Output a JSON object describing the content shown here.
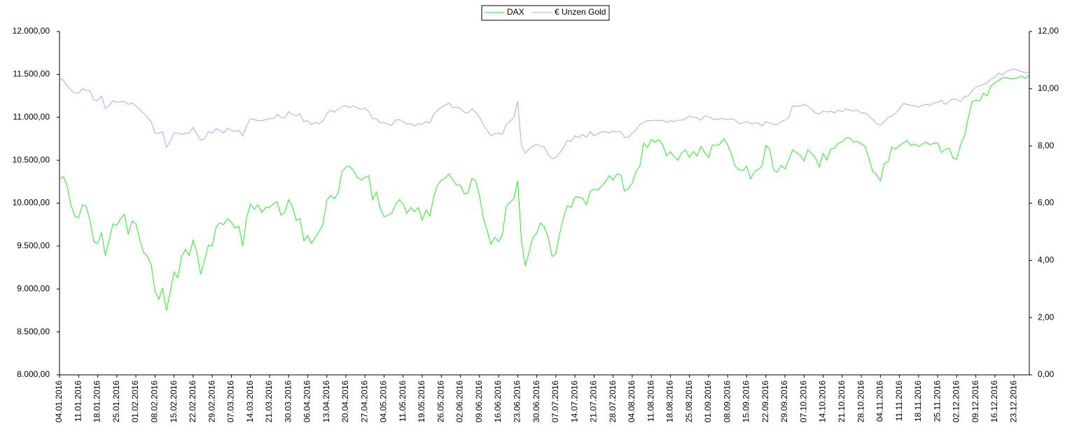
{
  "chart_data": {
    "type": "line",
    "categories": [
      "04.01.2016",
      null,
      null,
      null,
      null,
      "11.01.2016",
      null,
      null,
      null,
      null,
      "18.01.2016",
      null,
      null,
      null,
      null,
      "25.01.2016",
      null,
      null,
      null,
      null,
      "01.02.2016",
      null,
      null,
      null,
      null,
      "08.02.2016",
      null,
      null,
      null,
      null,
      "15.02.2016",
      null,
      null,
      null,
      null,
      "22.02.2016",
      null,
      null,
      null,
      null,
      "29.02.2016",
      null,
      null,
      null,
      null,
      "07.03.2016",
      null,
      null,
      null,
      null,
      "14.03.2016",
      null,
      null,
      null,
      null,
      "21.03.2016",
      null,
      null,
      null,
      null,
      "30.03.2016",
      null,
      null,
      null,
      null,
      "06.04.2016",
      null,
      null,
      null,
      null,
      "13.04.2016",
      null,
      null,
      null,
      null,
      "20.04.2016",
      null,
      null,
      null,
      null,
      "27.04.2016",
      null,
      null,
      null,
      null,
      "04.05.2016",
      null,
      null,
      null,
      null,
      "11.05.2016",
      null,
      null,
      null,
      null,
      "19.05.2016",
      null,
      null,
      null,
      null,
      "26.05.2016",
      null,
      null,
      null,
      null,
      "02.06.2016",
      null,
      null,
      null,
      null,
      "09.06.2016",
      null,
      null,
      null,
      null,
      "16.06.2016",
      null,
      null,
      null,
      null,
      "23.06.2016",
      null,
      null,
      null,
      null,
      "30.06.2016",
      null,
      null,
      null,
      null,
      "07.07.2016",
      null,
      null,
      null,
      null,
      "14.07.2016",
      null,
      null,
      null,
      null,
      "21.07.2016",
      null,
      null,
      null,
      null,
      "28.07.2016",
      null,
      null,
      null,
      null,
      "04.08.2016",
      null,
      null,
      null,
      null,
      "11.08.2016",
      null,
      null,
      null,
      null,
      "18.08.2016",
      null,
      null,
      null,
      null,
      "25.08.2016",
      null,
      null,
      null,
      null,
      "01.09.2016",
      null,
      null,
      null,
      null,
      "08.09.2016",
      null,
      null,
      null,
      null,
      "15.09.2016",
      null,
      null,
      null,
      null,
      "22.09.2016",
      null,
      null,
      null,
      null,
      "29.09.2016",
      null,
      null,
      null,
      null,
      "07.10.2016",
      null,
      null,
      null,
      null,
      "14.10.2016",
      null,
      null,
      null,
      null,
      "21.10.2016",
      null,
      null,
      null,
      null,
      "28.10.2016",
      null,
      null,
      null,
      null,
      "04.11.2016",
      null,
      null,
      null,
      null,
      "11.11.2016",
      null,
      null,
      null,
      null,
      "18.11.2016",
      null,
      null,
      null,
      null,
      "25.11.2016",
      null,
      null,
      null,
      null,
      "02.12.2016",
      null,
      null,
      null,
      null,
      "09.12.2016",
      null,
      null,
      null,
      null,
      "16.12.2016",
      null,
      null,
      null,
      null,
      "23.12.2016",
      null,
      null,
      null,
      null
    ],
    "series": [
      {
        "name": "DAX",
        "color": "#22ee22",
        "values": [
          10280,
          10310,
          10200,
          9980,
          9850,
          9830,
          9980,
          9960,
          9800,
          9550,
          9530,
          9660,
          9390,
          9570,
          9760,
          9740,
          9820,
          9870,
          9640,
          9790,
          9760,
          9580,
          9430,
          9380,
          9290,
          8980,
          8880,
          9010,
          8750,
          8970,
          9200,
          9130,
          9380,
          9460,
          9390,
          9570,
          9420,
          9170,
          9340,
          9510,
          9500,
          9720,
          9770,
          9750,
          9820,
          9780,
          9710,
          9730,
          9500,
          9830,
          9990,
          9930,
          9980,
          9890,
          9950,
          9950,
          9990,
          10020,
          9860,
          9890,
          10040,
          9960,
          9800,
          9820,
          9560,
          9620,
          9530,
          9600,
          9670,
          9750,
          10030,
          10090,
          10050,
          10120,
          10370,
          10420,
          10430,
          10380,
          10300,
          10270,
          10300,
          10320,
          10040,
          10130,
          9940,
          9840,
          9860,
          9880,
          9980,
          10040,
          9990,
          9880,
          9950,
          9900,
          9950,
          9800,
          9920,
          9850,
          10070,
          10210,
          10270,
          10290,
          10340,
          10270,
          10210,
          10210,
          10110,
          10120,
          10290,
          10260,
          10090,
          9830,
          9680,
          9520,
          9600,
          9550,
          9630,
          9960,
          10010,
          10050,
          10260,
          9560,
          9270,
          9430,
          9600,
          9650,
          9770,
          9720,
          9600,
          9380,
          9410,
          9640,
          9830,
          9970,
          9950,
          10070,
          10070,
          10060,
          9980,
          10140,
          10160,
          10150,
          10200,
          10250,
          10320,
          10270,
          10340,
          10330,
          10140,
          10170,
          10230,
          10370,
          10430,
          10700,
          10650,
          10740,
          10710,
          10740,
          10680,
          10550,
          10600,
          10540,
          10500,
          10590,
          10620,
          10530,
          10600,
          10550,
          10660,
          10590,
          10530,
          10680,
          10670,
          10690,
          10750,
          10680,
          10570,
          10430,
          10390,
          10380,
          10430,
          10280,
          10370,
          10390,
          10430,
          10670,
          10630,
          10390,
          10360,
          10440,
          10400,
          10500,
          10620,
          10590,
          10560,
          10490,
          10620,
          10580,
          10530,
          10420,
          10580,
          10500,
          10630,
          10640,
          10700,
          10710,
          10760,
          10760,
          10710,
          10720,
          10690,
          10660,
          10520,
          10370,
          10330,
          10260,
          10460,
          10480,
          10650,
          10630,
          10670,
          10700,
          10730,
          10670,
          10690,
          10660,
          10690,
          10710,
          10680,
          10700,
          10700,
          10590,
          10630,
          10640,
          10530,
          10510,
          10680,
          10780,
          10990,
          11180,
          11200,
          11190,
          11280,
          11250,
          11370,
          11400,
          11430,
          11460,
          11460,
          11450,
          11450,
          11460,
          11480,
          11450,
          11500
        ]
      },
      {
        "name": "€ Unzen Gold",
        "color": "#c39cf0",
        "axis": "y2",
        "values": [
          10.35,
          10.3,
          10.1,
          9.95,
          9.85,
          9.85,
          10.0,
          9.95,
          9.92,
          9.6,
          9.58,
          9.75,
          9.3,
          9.42,
          9.58,
          9.52,
          9.55,
          9.55,
          9.45,
          9.5,
          9.4,
          9.28,
          9.15,
          9.0,
          8.85,
          8.45,
          8.45,
          8.5,
          7.95,
          8.15,
          8.45,
          8.45,
          8.4,
          8.45,
          8.45,
          8.65,
          8.4,
          8.2,
          8.25,
          8.5,
          8.45,
          8.6,
          8.55,
          8.45,
          8.62,
          8.55,
          8.5,
          8.55,
          8.35,
          8.7,
          8.95,
          8.92,
          8.88,
          8.88,
          8.92,
          8.95,
          8.95,
          9.1,
          9.0,
          8.98,
          9.2,
          9.1,
          9.05,
          9.12,
          8.85,
          8.88,
          8.75,
          8.82,
          8.78,
          8.88,
          9.12,
          9.25,
          9.18,
          9.3,
          9.38,
          9.4,
          9.35,
          9.4,
          9.32,
          9.28,
          9.32,
          9.2,
          8.95,
          8.95,
          8.8,
          8.82,
          8.75,
          8.72,
          8.9,
          8.92,
          8.85,
          8.75,
          8.78,
          8.7,
          8.78,
          8.75,
          8.85,
          8.8,
          9.1,
          9.25,
          9.35,
          9.42,
          9.5,
          9.35,
          9.35,
          9.3,
          9.18,
          9.15,
          9.3,
          9.18,
          9.0,
          8.75,
          8.55,
          8.35,
          8.42,
          8.45,
          8.4,
          8.75,
          8.85,
          9.0,
          9.55,
          8.0,
          7.75,
          7.9,
          8.0,
          8.05,
          8.0,
          7.95,
          7.7,
          7.55,
          7.6,
          7.75,
          7.95,
          8.2,
          8.15,
          8.35,
          8.3,
          8.4,
          8.3,
          8.5,
          8.35,
          8.42,
          8.5,
          8.5,
          8.45,
          8.52,
          8.5,
          8.5,
          8.3,
          8.3,
          8.45,
          8.55,
          8.75,
          8.82,
          8.88,
          8.88,
          8.9,
          8.88,
          8.9,
          8.82,
          8.88,
          8.85,
          8.9,
          8.9,
          8.95,
          9.05,
          9.0,
          8.98,
          8.9,
          9.05,
          9.02,
          8.95,
          8.92,
          8.95,
          8.95,
          8.92,
          8.95,
          8.9,
          8.78,
          8.8,
          8.85,
          8.78,
          8.8,
          8.8,
          8.7,
          8.85,
          8.8,
          8.75,
          8.75,
          8.85,
          8.9,
          9.0,
          9.4,
          9.38,
          9.4,
          9.45,
          9.38,
          9.28,
          9.15,
          9.12,
          9.22,
          9.18,
          9.22,
          9.15,
          9.25,
          9.2,
          9.3,
          9.25,
          9.22,
          9.25,
          9.15,
          9.15,
          9.05,
          8.92,
          8.78,
          8.72,
          8.85,
          9.0,
          9.05,
          9.15,
          9.3,
          9.48,
          9.45,
          9.42,
          9.4,
          9.35,
          9.42,
          9.45,
          9.42,
          9.5,
          9.52,
          9.6,
          9.45,
          9.55,
          9.65,
          9.62,
          9.55,
          9.72,
          9.75,
          9.92,
          10.05,
          10.1,
          10.15,
          10.2,
          10.35,
          10.4,
          10.55,
          10.48,
          10.6,
          10.65,
          10.68,
          10.65,
          10.6,
          10.55,
          10.6
        ]
      }
    ],
    "ylim": [
      8000,
      12000
    ],
    "yticks": [
      {
        "value": 8000,
        "label": "8.000,00"
      },
      {
        "value": 8500,
        "label": "8.500,00"
      },
      {
        "value": 9000,
        "label": "9.000,00"
      },
      {
        "value": 9500,
        "label": "9.500,00"
      },
      {
        "value": 10000,
        "label": "10.000,00"
      },
      {
        "value": 10500,
        "label": "10.500,00"
      },
      {
        "value": 11000,
        "label": "11.000,00"
      },
      {
        "value": 11500,
        "label": "11.500,00"
      },
      {
        "value": 12000,
        "label": "12.000,00"
      }
    ],
    "y2lim": [
      0,
      12
    ],
    "y2ticks": [
      {
        "value": 0,
        "label": "0,00"
      },
      {
        "value": 2,
        "label": "2,00"
      },
      {
        "value": 4,
        "label": "4,00"
      },
      {
        "value": 6,
        "label": "6,00"
      },
      {
        "value": 8,
        "label": "8,00"
      },
      {
        "value": 10,
        "label": "10,00"
      },
      {
        "value": 12,
        "label": "12,00"
      }
    ],
    "legend": "top",
    "grid": false
  }
}
